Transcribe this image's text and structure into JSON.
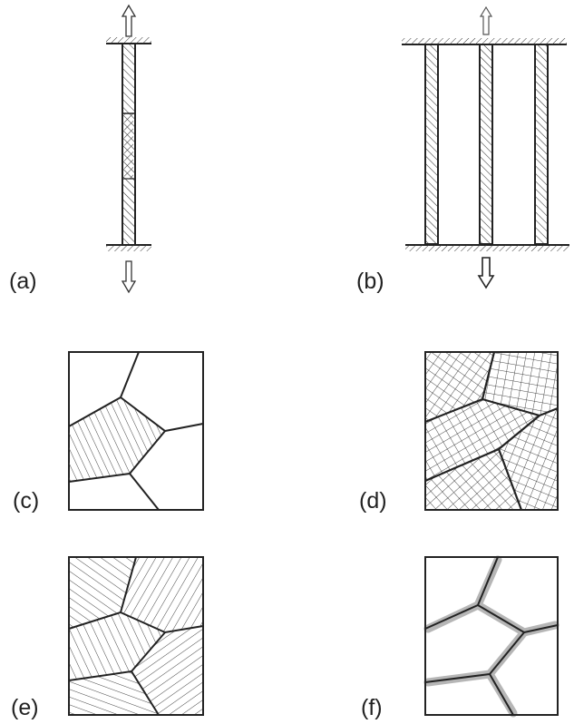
{
  "figure": {
    "panels": [
      {
        "id": "a",
        "label": "(a)"
      },
      {
        "id": "b",
        "label": "(b)"
      },
      {
        "id": "c",
        "label": "(c)"
      },
      {
        "id": "d",
        "label": "(d)"
      },
      {
        "id": "e",
        "label": "(e)"
      },
      {
        "id": "f",
        "label": "(f)"
      }
    ]
  },
  "colors": {
    "ink": "#222222",
    "hatch": "#444444",
    "boundary_halo": "#aaaaaa",
    "background": "#ffffff"
  },
  "icons": {
    "tension_arrow": "hollow-arrow-icon",
    "fixed_support": "hatched-support-icon"
  }
}
